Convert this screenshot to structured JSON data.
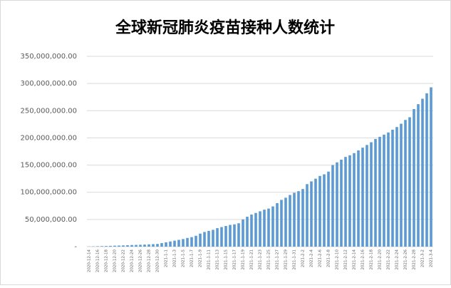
{
  "chart_data": {
    "type": "bar",
    "title": "全球新冠肺炎疫苗接种人数统计",
    "categories": [
      "2020-12-14",
      null,
      "2020-12-16",
      null,
      "2020-12-18",
      null,
      "2020-12-20",
      null,
      "2020-12-22",
      null,
      "2020-12-24",
      null,
      "2020-12-26",
      null,
      "2020-12-28",
      null,
      "2020-12-30",
      null,
      "2021-1-1",
      null,
      "2021-1-3",
      null,
      "2021-1-5",
      null,
      "2021-1-7",
      null,
      "2021-1-9",
      null,
      "2021-1-11",
      null,
      "2021-1-13",
      null,
      "2021-1-15",
      null,
      "2021-1-17",
      null,
      "2021-1-19",
      null,
      "2021-1-21",
      null,
      "2021-1-23",
      null,
      "2021-1-25",
      null,
      "2021-1-27",
      null,
      "2021-1-29",
      null,
      "2021-1-31",
      null,
      "2021-2-2",
      null,
      "2021-2-4",
      null,
      "2021-2-6",
      null,
      "2021-2-8",
      null,
      "2021-2-10",
      null,
      "2021-2-12",
      null,
      "2021-2-14",
      null,
      "2021-2-16",
      null,
      "2021-2-18",
      null,
      "2021-2-20",
      null,
      "2021-2-22",
      null,
      "2021-2-24",
      null,
      "2021-2-26",
      null,
      "2021-2-28",
      null,
      "2021-3-2",
      null,
      "2021-3-4"
    ],
    "values": [
      300000,
      500000,
      800000,
      1000000,
      1200000,
      1500000,
      1800000,
      2000000,
      2300000,
      2700000,
      3000000,
      3200000,
      3500000,
      3800000,
      4200000,
      4600000,
      5000000,
      6500000,
      8000000,
      9500000,
      11000000,
      12500000,
      14000000,
      16000000,
      17500000,
      20000000,
      24000000,
      27000000,
      29000000,
      31000000,
      34000000,
      36000000,
      38000000,
      40000000,
      41000000,
      43000000,
      50000000,
      55000000,
      59000000,
      62000000,
      65000000,
      68000000,
      70000000,
      74000000,
      80000000,
      86000000,
      90000000,
      95000000,
      99000000,
      102000000,
      106000000,
      115000000,
      120000000,
      125000000,
      130000000,
      133000000,
      138000000,
      150000000,
      155000000,
      160000000,
      165000000,
      168000000,
      172000000,
      177000000,
      182000000,
      187000000,
      192000000,
      198000000,
      202000000,
      206000000,
      210000000,
      215000000,
      220000000,
      226000000,
      233000000,
      238000000,
      253000000,
      262000000,
      272000000,
      282000000,
      293000000
    ],
    "color": "#5b9bd5",
    "ylim": [
      0,
      350000000
    ],
    "yticks": [
      {
        "value": 0,
        "label": "-"
      },
      {
        "value": 50000000,
        "label": "50,000,000.00"
      },
      {
        "value": 100000000,
        "label": "100,000,000.00"
      },
      {
        "value": 150000000,
        "label": "150,000,000.00"
      },
      {
        "value": 200000000,
        "label": "200,000,000.00"
      },
      {
        "value": 250000000,
        "label": "250,000,000.00"
      },
      {
        "value": 300000000,
        "label": "300,000,000.00"
      },
      {
        "value": 350000000,
        "label": "350,000,000.00"
      }
    ],
    "grid": true
  }
}
